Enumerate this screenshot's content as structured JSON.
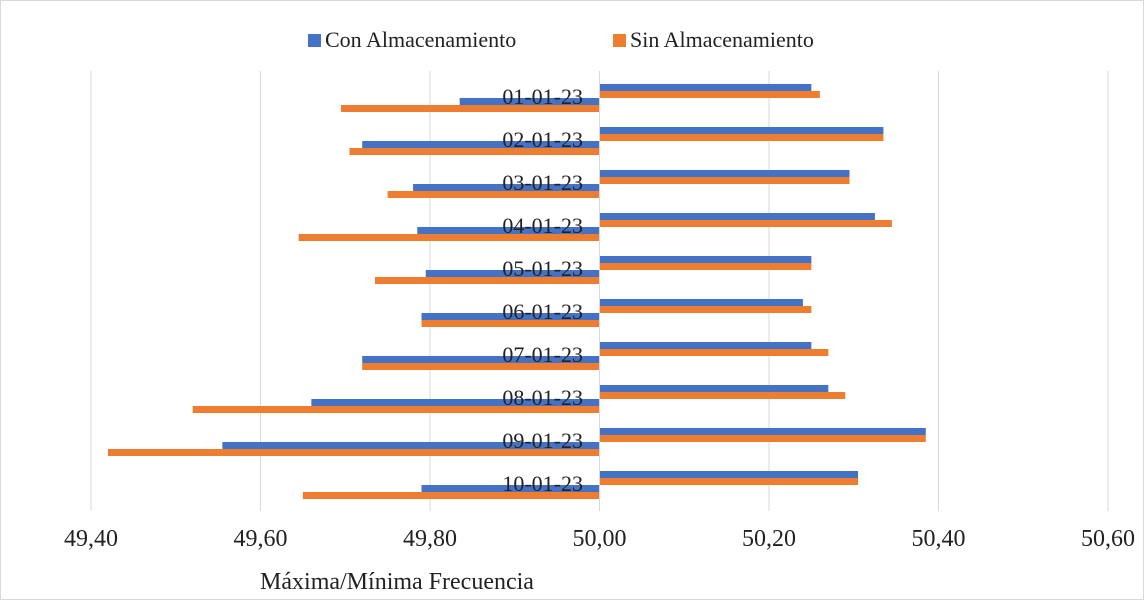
{
  "chart_data": {
    "type": "bar",
    "orientation": "horizontal",
    "title": "",
    "xlabel": "Máxima/Mínima Frecuencia",
    "ylabel": "",
    "xlim": [
      49.4,
      50.6
    ],
    "x_ticks": [
      49.4,
      49.6,
      49.8,
      50.0,
      50.2,
      50.4,
      50.6
    ],
    "x_tick_labels": [
      "49,40",
      "49,60",
      "49,80",
      "50,00",
      "50,20",
      "50,40",
      "50,60"
    ],
    "bar_origin": 50.0,
    "grid": true,
    "legend_position": "top",
    "categories": [
      "01-01-23",
      "02-01-23",
      "03-01-23",
      "04-01-23",
      "05-01-23",
      "06-01-23",
      "07-01-23",
      "08-01-23",
      "09-01-23",
      "10-01-23"
    ],
    "series": [
      {
        "name": "Con Almacenamiento",
        "color": "#4472c4",
        "max": [
          50.25,
          50.335,
          50.295,
          50.325,
          50.25,
          50.24,
          50.25,
          50.27,
          50.385,
          50.305
        ],
        "min": [
          49.835,
          49.72,
          49.78,
          49.785,
          49.795,
          49.79,
          49.72,
          49.66,
          49.555,
          49.79
        ]
      },
      {
        "name": "Sin Almacenamiento",
        "color": "#ed7d31",
        "max": [
          50.26,
          50.335,
          50.295,
          50.345,
          50.25,
          50.25,
          50.27,
          50.29,
          50.385,
          50.305
        ],
        "min": [
          49.695,
          49.705,
          49.75,
          49.645,
          49.735,
          49.79,
          49.72,
          49.52,
          49.42,
          49.65
        ]
      }
    ]
  }
}
